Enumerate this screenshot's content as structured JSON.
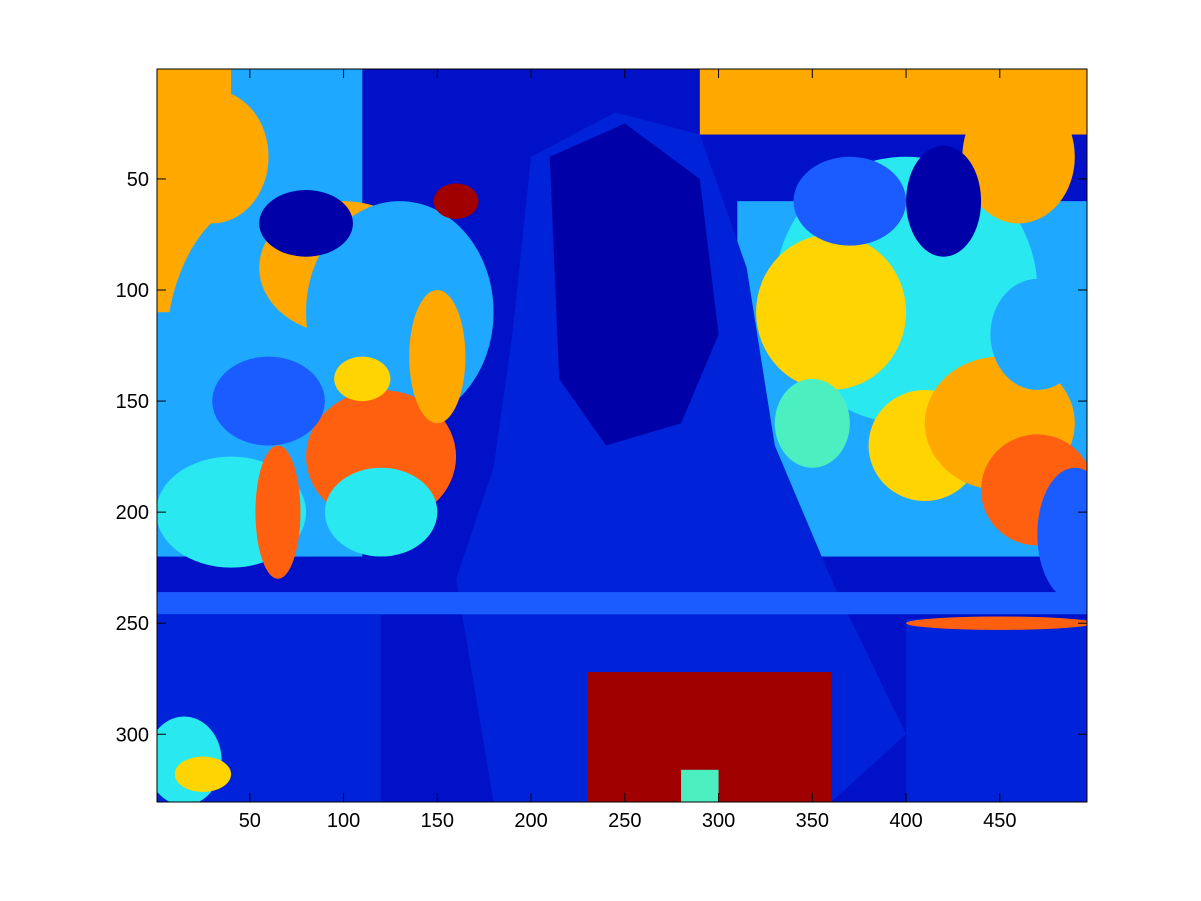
{
  "chart_data": {
    "type": "heatmap",
    "colormap": "jet",
    "grid": false,
    "xlim": [
      0.5,
      496.5
    ],
    "ylim": [
      330.5,
      0.5
    ],
    "y_direction": "reverse",
    "xticks": [
      50,
      100,
      150,
      200,
      250,
      300,
      350,
      400,
      450
    ],
    "yticks": [
      50,
      100,
      150,
      200,
      250,
      300
    ],
    "xtick_labels": [
      "50",
      "100",
      "150",
      "200",
      "250",
      "300",
      "350",
      "400",
      "450"
    ],
    "ytick_labels": [
      "50",
      "100",
      "150",
      "200",
      "250",
      "300"
    ],
    "background_color": "#0011c8",
    "palette": {
      "dark_blue": "#0000a8",
      "blue": "#0022d8",
      "mid_blue": "#1a5cff",
      "light_blue": "#1fa8ff",
      "cyan": "#2ae8f0",
      "aqua": "#4cf0c0",
      "green": "#7ef080",
      "yellow": "#ffd400",
      "orange": "#ffa800",
      "dark_orange": "#ff6010",
      "red": "#e01010",
      "dark_red": "#a00000"
    },
    "regions": [
      {
        "shape": "rect",
        "x": [
          0.5,
          110
        ],
        "y": [
          0.5,
          220
        ],
        "color": "light_blue"
      },
      {
        "shape": "rect",
        "x": [
          0.5,
          40
        ],
        "y": [
          0.5,
          110
        ],
        "color": "orange"
      },
      {
        "shape": "ellipse",
        "cx": 55,
        "cy": 130,
        "rx": 50,
        "ry": 70,
        "color": "light_blue"
      },
      {
        "shape": "ellipse",
        "cx": 100,
        "cy": 90,
        "rx": 45,
        "ry": 30,
        "color": "orange"
      },
      {
        "shape": "ellipse",
        "cx": 130,
        "cy": 110,
        "rx": 50,
        "ry": 50,
        "color": "light_blue"
      },
      {
        "shape": "ellipse",
        "cx": 120,
        "cy": 175,
        "rx": 40,
        "ry": 30,
        "color": "dark_orange"
      },
      {
        "shape": "ellipse",
        "cx": 60,
        "cy": 150,
        "rx": 30,
        "ry": 20,
        "color": "mid_blue"
      },
      {
        "shape": "ellipse",
        "cx": 80,
        "cy": 70,
        "rx": 25,
        "ry": 15,
        "color": "dark_blue"
      },
      {
        "shape": "ellipse",
        "cx": 30,
        "cy": 40,
        "rx": 30,
        "ry": 30,
        "color": "orange"
      },
      {
        "shape": "ellipse",
        "cx": 150,
        "cy": 130,
        "rx": 15,
        "ry": 30,
        "color": "orange"
      },
      {
        "shape": "ellipse",
        "cx": 40,
        "cy": 200,
        "rx": 40,
        "ry": 25,
        "color": "cyan"
      },
      {
        "shape": "ellipse",
        "cx": 120,
        "cy": 200,
        "rx": 30,
        "ry": 20,
        "color": "cyan"
      },
      {
        "shape": "ellipse",
        "cx": 65,
        "cy": 200,
        "rx": 12,
        "ry": 30,
        "color": "dark_orange"
      },
      {
        "shape": "ellipse",
        "cx": 110,
        "cy": 140,
        "rx": 15,
        "ry": 10,
        "color": "yellow"
      },
      {
        "shape": "ellipse",
        "cx": 160,
        "cy": 60,
        "rx": 12,
        "ry": 8,
        "color": "dark_red"
      },
      {
        "shape": "rect",
        "x": [
          290,
          496.5
        ],
        "y": [
          0.5,
          30
        ],
        "color": "orange"
      },
      {
        "shape": "rect",
        "x": [
          310,
          496.5
        ],
        "y": [
          60,
          220
        ],
        "color": "light_blue"
      },
      {
        "shape": "ellipse",
        "cx": 400,
        "cy": 100,
        "rx": 70,
        "ry": 60,
        "color": "cyan"
      },
      {
        "shape": "ellipse",
        "cx": 360,
        "cy": 110,
        "rx": 40,
        "ry": 35,
        "color": "yellow"
      },
      {
        "shape": "ellipse",
        "cx": 410,
        "cy": 170,
        "rx": 30,
        "ry": 25,
        "color": "yellow"
      },
      {
        "shape": "ellipse",
        "cx": 460,
        "cy": 40,
        "rx": 30,
        "ry": 30,
        "color": "orange"
      },
      {
        "shape": "ellipse",
        "cx": 450,
        "cy": 160,
        "rx": 40,
        "ry": 30,
        "color": "orange"
      },
      {
        "shape": "ellipse",
        "cx": 470,
        "cy": 120,
        "rx": 25,
        "ry": 25,
        "color": "light_blue"
      },
      {
        "shape": "ellipse",
        "cx": 370,
        "cy": 60,
        "rx": 30,
        "ry": 20,
        "color": "mid_blue"
      },
      {
        "shape": "ellipse",
        "cx": 420,
        "cy": 60,
        "rx": 20,
        "ry": 25,
        "color": "dark_blue"
      },
      {
        "shape": "ellipse",
        "cx": 470,
        "cy": 190,
        "rx": 30,
        "ry": 25,
        "color": "dark_orange"
      },
      {
        "shape": "ellipse",
        "cx": 350,
        "cy": 160,
        "rx": 20,
        "ry": 20,
        "color": "aqua"
      },
      {
        "shape": "ellipse",
        "cx": 490,
        "cy": 210,
        "rx": 20,
        "ry": 30,
        "color": "mid_blue"
      },
      {
        "shape": "poly",
        "points": [
          [
            160,
            230
          ],
          [
            180,
            180
          ],
          [
            190,
            120
          ],
          [
            200,
            40
          ],
          [
            245,
            20
          ],
          [
            290,
            30
          ],
          [
            315,
            90
          ],
          [
            330,
            170
          ],
          [
            360,
            230
          ],
          [
            400,
            300
          ],
          [
            360,
            330.5
          ],
          [
            180,
            330.5
          ]
        ],
        "color": "blue"
      },
      {
        "shape": "poly",
        "points": [
          [
            210,
            40
          ],
          [
            250,
            25
          ],
          [
            290,
            50
          ],
          [
            300,
            120
          ],
          [
            280,
            160
          ],
          [
            240,
            170
          ],
          [
            215,
            140
          ]
        ],
        "color": "dark_blue"
      },
      {
        "shape": "rect",
        "x": [
          0.5,
          496.5
        ],
        "y": [
          236,
          246
        ],
        "color": "mid_blue"
      },
      {
        "shape": "rect",
        "x": [
          0.5,
          120
        ],
        "y": [
          246,
          330.5
        ],
        "color": "blue"
      },
      {
        "shape": "rect",
        "x": [
          400,
          496.5
        ],
        "y": [
          248,
          330.5
        ],
        "color": "blue"
      },
      {
        "shape": "rect",
        "x": [
          230,
          360
        ],
        "y": [
          272,
          330.5
        ],
        "color": "dark_red"
      },
      {
        "shape": "rect",
        "x": [
          320,
          360
        ],
        "y": [
          285,
          330.5
        ],
        "color": "dark_red"
      },
      {
        "shape": "rect",
        "x": [
          280,
          300
        ],
        "y": [
          316,
          330.5
        ],
        "color": "aqua"
      },
      {
        "shape": "ellipse",
        "cx": 15,
        "cy": 312,
        "rx": 20,
        "ry": 20,
        "color": "cyan"
      },
      {
        "shape": "ellipse",
        "cx": 25,
        "cy": 318,
        "rx": 15,
        "ry": 8,
        "color": "yellow"
      },
      {
        "shape": "ellipse",
        "cx": 450,
        "cy": 250,
        "rx": 50,
        "ry": 3,
        "color": "dark_orange"
      }
    ]
  }
}
